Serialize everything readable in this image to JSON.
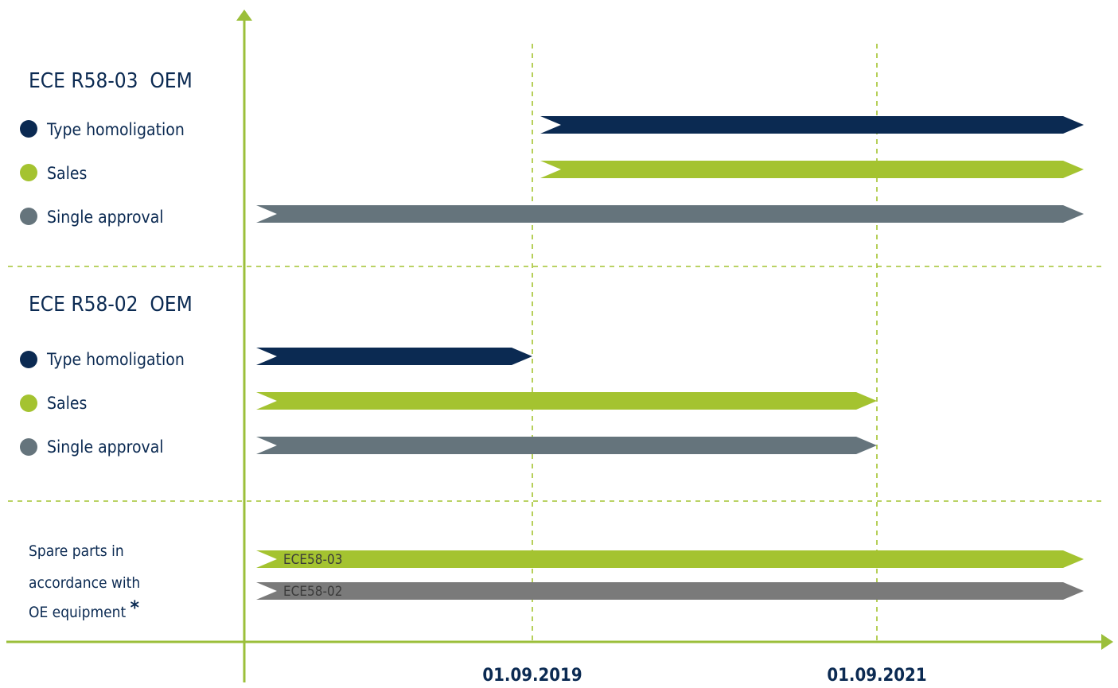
{
  "chart_data": {
    "type": "timeline",
    "colors": {
      "navy": "#0b2a52",
      "green": "#a4c330",
      "slate": "#65747c",
      "gray": "#7a7a7a",
      "axis": "#9bbf3a"
    },
    "dates": [
      "01.09.2019",
      "01.09.2021"
    ],
    "groups": [
      {
        "title": "ECE R58-03  OEM",
        "rows": [
          {
            "label": "Type homoligation",
            "color": "navy",
            "start": "01.09.2019",
            "end": "open"
          },
          {
            "label": "Sales",
            "color": "green",
            "start": "01.09.2019",
            "end": "open"
          },
          {
            "label": "Single approval",
            "color": "slate",
            "start": "open",
            "end": "open"
          }
        ]
      },
      {
        "title": "ECE R58-02  OEM",
        "rows": [
          {
            "label": "Type homoligation",
            "color": "navy",
            "start": "open",
            "end": "01.09.2019"
          },
          {
            "label": "Sales",
            "color": "green",
            "start": "open",
            "end": "01.09.2021"
          },
          {
            "label": "Single approval",
            "color": "slate",
            "start": "open",
            "end": "01.09.2021"
          }
        ]
      }
    ],
    "spare_parts": {
      "label_lines": [
        "Spare parts in",
        "accordance with",
        "OE equipment "
      ],
      "asterisk": "*",
      "bars": [
        {
          "text": "ECE58-03",
          "color": "green",
          "start": "open",
          "end": "open"
        },
        {
          "text": "ECE58-02",
          "color": "gray",
          "start": "open",
          "end": "open"
        }
      ]
    }
  }
}
